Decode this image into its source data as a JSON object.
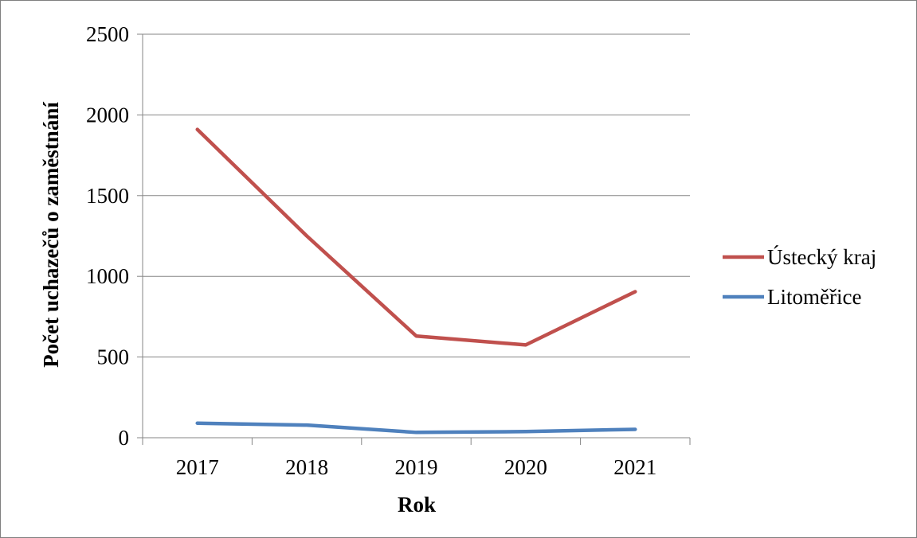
{
  "chart_data": {
    "type": "line",
    "title": "",
    "xlabel": "Rok",
    "ylabel": "Počet uchazečů o zaměstnání",
    "categories": [
      "2017",
      "2018",
      "2019",
      "2020",
      "2021"
    ],
    "ylim": [
      0,
      2500
    ],
    "yticks": [
      "0",
      "500",
      "1000",
      "1500",
      "2000",
      "2500"
    ],
    "grid": true,
    "legend_position": "right",
    "series": [
      {
        "name": "Ústecký kraj",
        "color": "#c0504d",
        "values": [
          1910,
          1250,
          630,
          575,
          905
        ]
      },
      {
        "name": "Litoměřice",
        "color": "#4f81bd",
        "values": [
          90,
          78,
          33,
          38,
          52
        ]
      }
    ]
  }
}
